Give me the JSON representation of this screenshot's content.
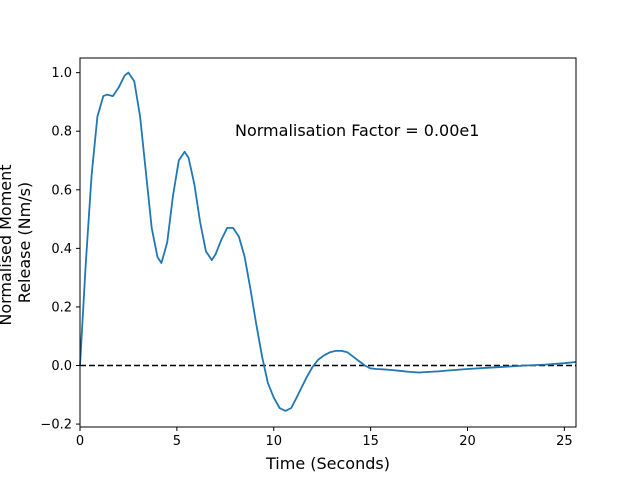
{
  "chart_data": {
    "type": "line",
    "xlabel": "Time (Seconds)",
    "ylabel_lines": [
      "Normalised Moment",
      "Release (Nm/s)"
    ],
    "annotation": {
      "text": "Normalisation Factor = 0.00e1",
      "x": 8.0,
      "y": 0.8
    },
    "xlim": [
      0,
      25.6
    ],
    "ylim": [
      -0.21,
      1.05
    ],
    "xticks": [
      0,
      5,
      10,
      15,
      20,
      25
    ],
    "xtick_labels": [
      "0",
      "5",
      "10",
      "15",
      "20",
      "25"
    ],
    "yticks": [
      -0.2,
      0.0,
      0.2,
      0.4,
      0.6,
      0.8,
      1.0
    ],
    "ytick_labels": [
      "−0.2",
      "0.0",
      "0.2",
      "0.4",
      "0.6",
      "0.8",
      "1.0"
    ],
    "grid": false,
    "zero_line": {
      "y": 0,
      "style": "dashed",
      "color": "#000000"
    },
    "series": [
      {
        "color": "#1f77b4",
        "x": [
          0,
          0.3,
          0.6,
          0.9,
          1.2,
          1.4,
          1.7,
          2.0,
          2.3,
          2.5,
          2.8,
          3.1,
          3.4,
          3.7,
          4.0,
          4.2,
          4.5,
          4.8,
          5.1,
          5.4,
          5.6,
          5.9,
          6.2,
          6.5,
          6.8,
          7.0,
          7.3,
          7.6,
          7.9,
          8.2,
          8.5,
          8.8,
          9.1,
          9.4,
          9.7,
          10.0,
          10.3,
          10.6,
          10.9,
          11.1,
          11.4,
          11.7,
          12.0,
          12.3,
          12.6,
          12.9,
          13.2,
          13.5,
          13.8,
          14.1,
          14.4,
          14.7,
          15.0,
          15.3,
          15.6,
          16.0,
          16.5,
          17.0,
          17.5,
          18.0,
          18.5,
          19.0,
          20.0,
          21.0,
          22.0,
          23.0,
          24.0,
          25.0,
          25.6
        ],
        "y": [
          0.0,
          0.35,
          0.65,
          0.85,
          0.92,
          0.925,
          0.92,
          0.95,
          0.99,
          1.0,
          0.97,
          0.85,
          0.66,
          0.47,
          0.37,
          0.35,
          0.42,
          0.58,
          0.7,
          0.73,
          0.71,
          0.62,
          0.49,
          0.39,
          0.36,
          0.38,
          0.43,
          0.47,
          0.47,
          0.44,
          0.37,
          0.26,
          0.14,
          0.03,
          -0.06,
          -0.11,
          -0.145,
          -0.155,
          -0.145,
          -0.12,
          -0.08,
          -0.04,
          -0.005,
          0.02,
          0.035,
          0.045,
          0.05,
          0.05,
          0.045,
          0.03,
          0.015,
          0.0,
          -0.01,
          -0.012,
          -0.013,
          -0.015,
          -0.018,
          -0.022,
          -0.024,
          -0.022,
          -0.02,
          -0.017,
          -0.012,
          -0.008,
          -0.004,
          0.0,
          0.003,
          0.008,
          0.012
        ]
      }
    ]
  }
}
